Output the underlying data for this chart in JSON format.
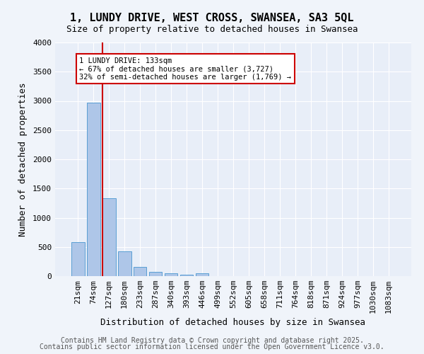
{
  "title1": "1, LUNDY DRIVE, WEST CROSS, SWANSEA, SA3 5QL",
  "title2": "Size of property relative to detached houses in Swansea",
  "xlabel": "Distribution of detached houses by size in Swansea",
  "ylabel": "Number of detached properties",
  "categories": [
    "21sqm",
    "74sqm",
    "127sqm",
    "180sqm",
    "233sqm",
    "287sqm",
    "340sqm",
    "393sqm",
    "446sqm",
    "499sqm",
    "552sqm",
    "605sqm",
    "658sqm",
    "711sqm",
    "764sqm",
    "818sqm",
    "871sqm",
    "924sqm",
    "977sqm",
    "1030sqm",
    "1083sqm"
  ],
  "values": [
    580,
    2970,
    1330,
    420,
    160,
    75,
    50,
    30,
    50,
    0,
    0,
    0,
    0,
    0,
    0,
    0,
    0,
    0,
    0,
    0,
    0
  ],
  "bar_color": "#aec6e8",
  "bar_edge_color": "#5a9fd4",
  "vline_color": "#cc0000",
  "annotation_text": "1 LUNDY DRIVE: 133sqm\n← 67% of detached houses are smaller (3,727)\n32% of semi-detached houses are larger (1,769) →",
  "annotation_box_color": "#ffffff",
  "annotation_box_edge": "#cc0000",
  "ylim": [
    0,
    4000
  ],
  "yticks": [
    0,
    500,
    1000,
    1500,
    2000,
    2500,
    3000,
    3500,
    4000
  ],
  "background_color": "#e8eef8",
  "fig_background_color": "#f0f4fa",
  "footer1": "Contains HM Land Registry data © Crown copyright and database right 2025.",
  "footer2": "Contains public sector information licensed under the Open Government Licence v3.0.",
  "title_fontsize": 11,
  "subtitle_fontsize": 9,
  "axis_label_fontsize": 9,
  "tick_fontsize": 8,
  "footer_fontsize": 7,
  "annotation_fontsize": 7.5
}
